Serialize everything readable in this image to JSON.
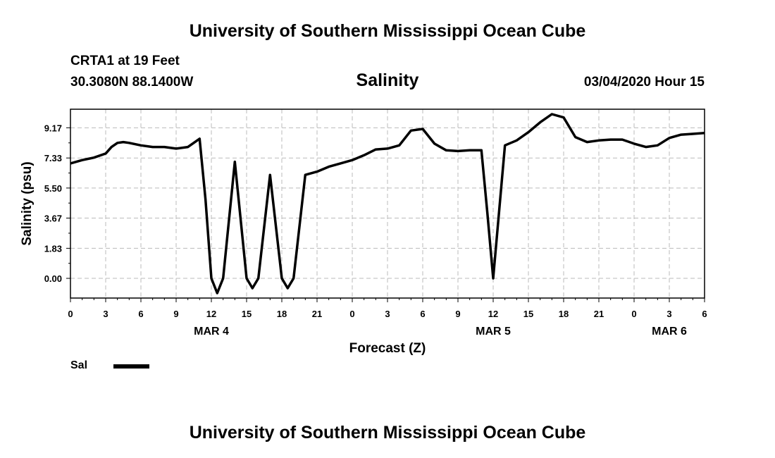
{
  "page": {
    "header_title": "University of Southern Mississippi Ocean Cube",
    "footer_title": "University of Southern Mississippi Ocean Cube",
    "station": "CRTA1 at 19 Feet",
    "coordinates": "30.3080N 88.1400W",
    "datetime": "03/04/2020 Hour 15"
  },
  "chart_data": {
    "type": "line",
    "title": "Salinity",
    "xlabel": "Forecast (Z)",
    "ylabel": "Salinity (psu)",
    "ylim": [
      -1.2,
      10.3
    ],
    "yticks": [
      0.0,
      1.83,
      3.67,
      5.5,
      7.33,
      9.17
    ],
    "ytick_labels": [
      "0.00",
      "1.83",
      "3.67",
      "5.50",
      "7.33",
      "9.17"
    ],
    "xlim": [
      0,
      54
    ],
    "xtick_labels": [
      "0",
      "3",
      "6",
      "9",
      "12",
      "15",
      "18",
      "21",
      "0",
      "3",
      "6",
      "9",
      "12",
      "15",
      "18",
      "21",
      "0",
      "3",
      "6"
    ],
    "day_labels": [
      {
        "label": "MAR 4",
        "x": 12
      },
      {
        "label": "MAR 5",
        "x": 36
      },
      {
        "label": "MAR 6",
        "x": 51
      }
    ],
    "grid": true,
    "legend_position": "bottom-left",
    "series": [
      {
        "name": "Sal",
        "color": "#000000",
        "x": [
          0,
          1,
          2,
          3,
          3.5,
          4,
          4.5,
          5,
          6,
          7,
          8,
          9,
          10,
          11,
          11.5,
          12,
          12.5,
          13,
          14,
          15,
          15.5,
          16,
          17,
          18,
          18.5,
          19,
          20,
          21,
          22,
          23,
          24,
          25,
          26,
          27,
          28,
          29,
          30,
          31,
          32,
          33,
          34,
          35,
          35.5,
          36,
          37,
          38,
          39,
          40,
          41,
          42,
          43,
          44,
          45,
          46,
          47,
          48,
          49,
          50,
          51,
          52,
          53,
          54
        ],
        "y": [
          7.0,
          7.2,
          7.35,
          7.6,
          8.0,
          8.25,
          8.3,
          8.25,
          8.1,
          8.0,
          8.0,
          7.9,
          8.0,
          8.5,
          4.8,
          0.0,
          -0.9,
          0.0,
          7.1,
          0.0,
          -0.6,
          0.0,
          6.3,
          0.0,
          -0.6,
          0.0,
          6.3,
          6.5,
          6.8,
          7.0,
          7.2,
          7.5,
          7.85,
          7.9,
          8.1,
          9.0,
          9.1,
          8.2,
          7.8,
          7.75,
          7.8,
          7.8,
          4.0,
          0.0,
          8.1,
          8.4,
          8.9,
          9.5,
          10.0,
          9.8,
          8.6,
          8.3,
          8.4,
          8.45,
          8.45,
          8.2,
          8.0,
          8.1,
          8.55,
          8.75,
          8.8,
          8.85
        ]
      }
    ]
  }
}
